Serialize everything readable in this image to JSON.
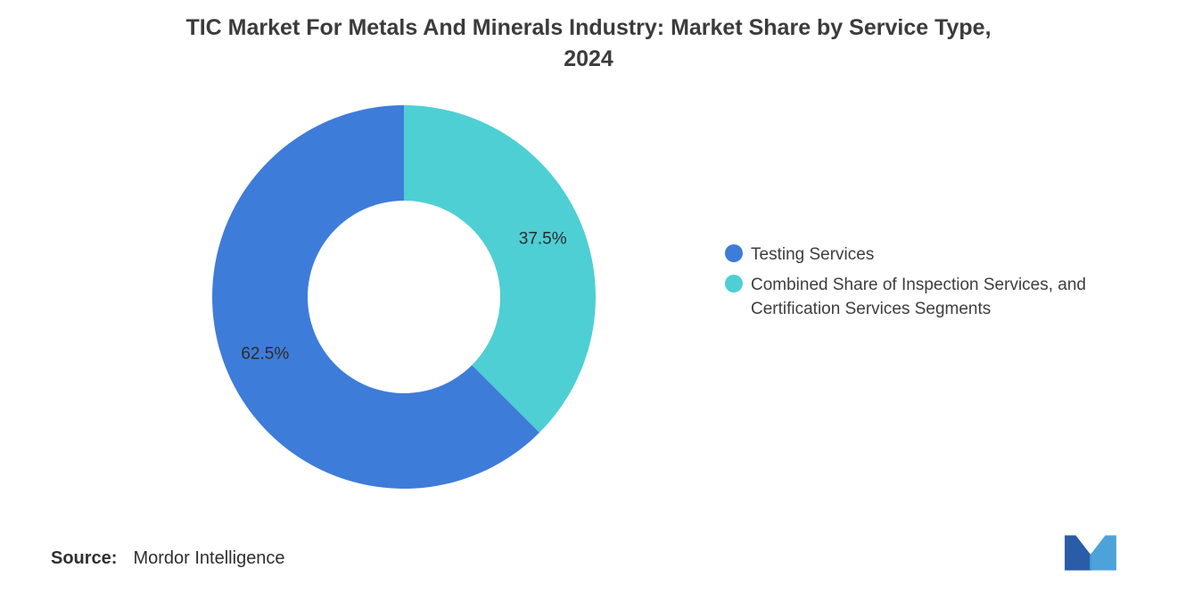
{
  "title": {
    "line1": "TIC Market For Metals And Minerals Industry: Market Share by Service Type,",
    "line2": "2024"
  },
  "chart_data": {
    "type": "pie",
    "subtype": "donut",
    "title": "TIC Market For Metals And Minerals Industry: Market Share by Service Type, 2024",
    "labels": [
      "Testing Services",
      "Combined Share of Inspection Services, and Certification Services Segments"
    ],
    "values": [
      62.5,
      37.5
    ],
    "data_labels": [
      "62.5%",
      "37.5%"
    ],
    "colors": [
      "#3E7CD9",
      "#4ECFD4"
    ],
    "start_angle_deg": 135,
    "inner_radius_ratio": 0.5,
    "legend_position": "right",
    "grid": false
  },
  "source": {
    "label": "Source:",
    "value": "Mordor Intelligence"
  },
  "logo": {
    "name": "mordor-intelligence-logo",
    "colors": {
      "dark": "#2B5CA8",
      "light": "#3E9BD6"
    }
  }
}
